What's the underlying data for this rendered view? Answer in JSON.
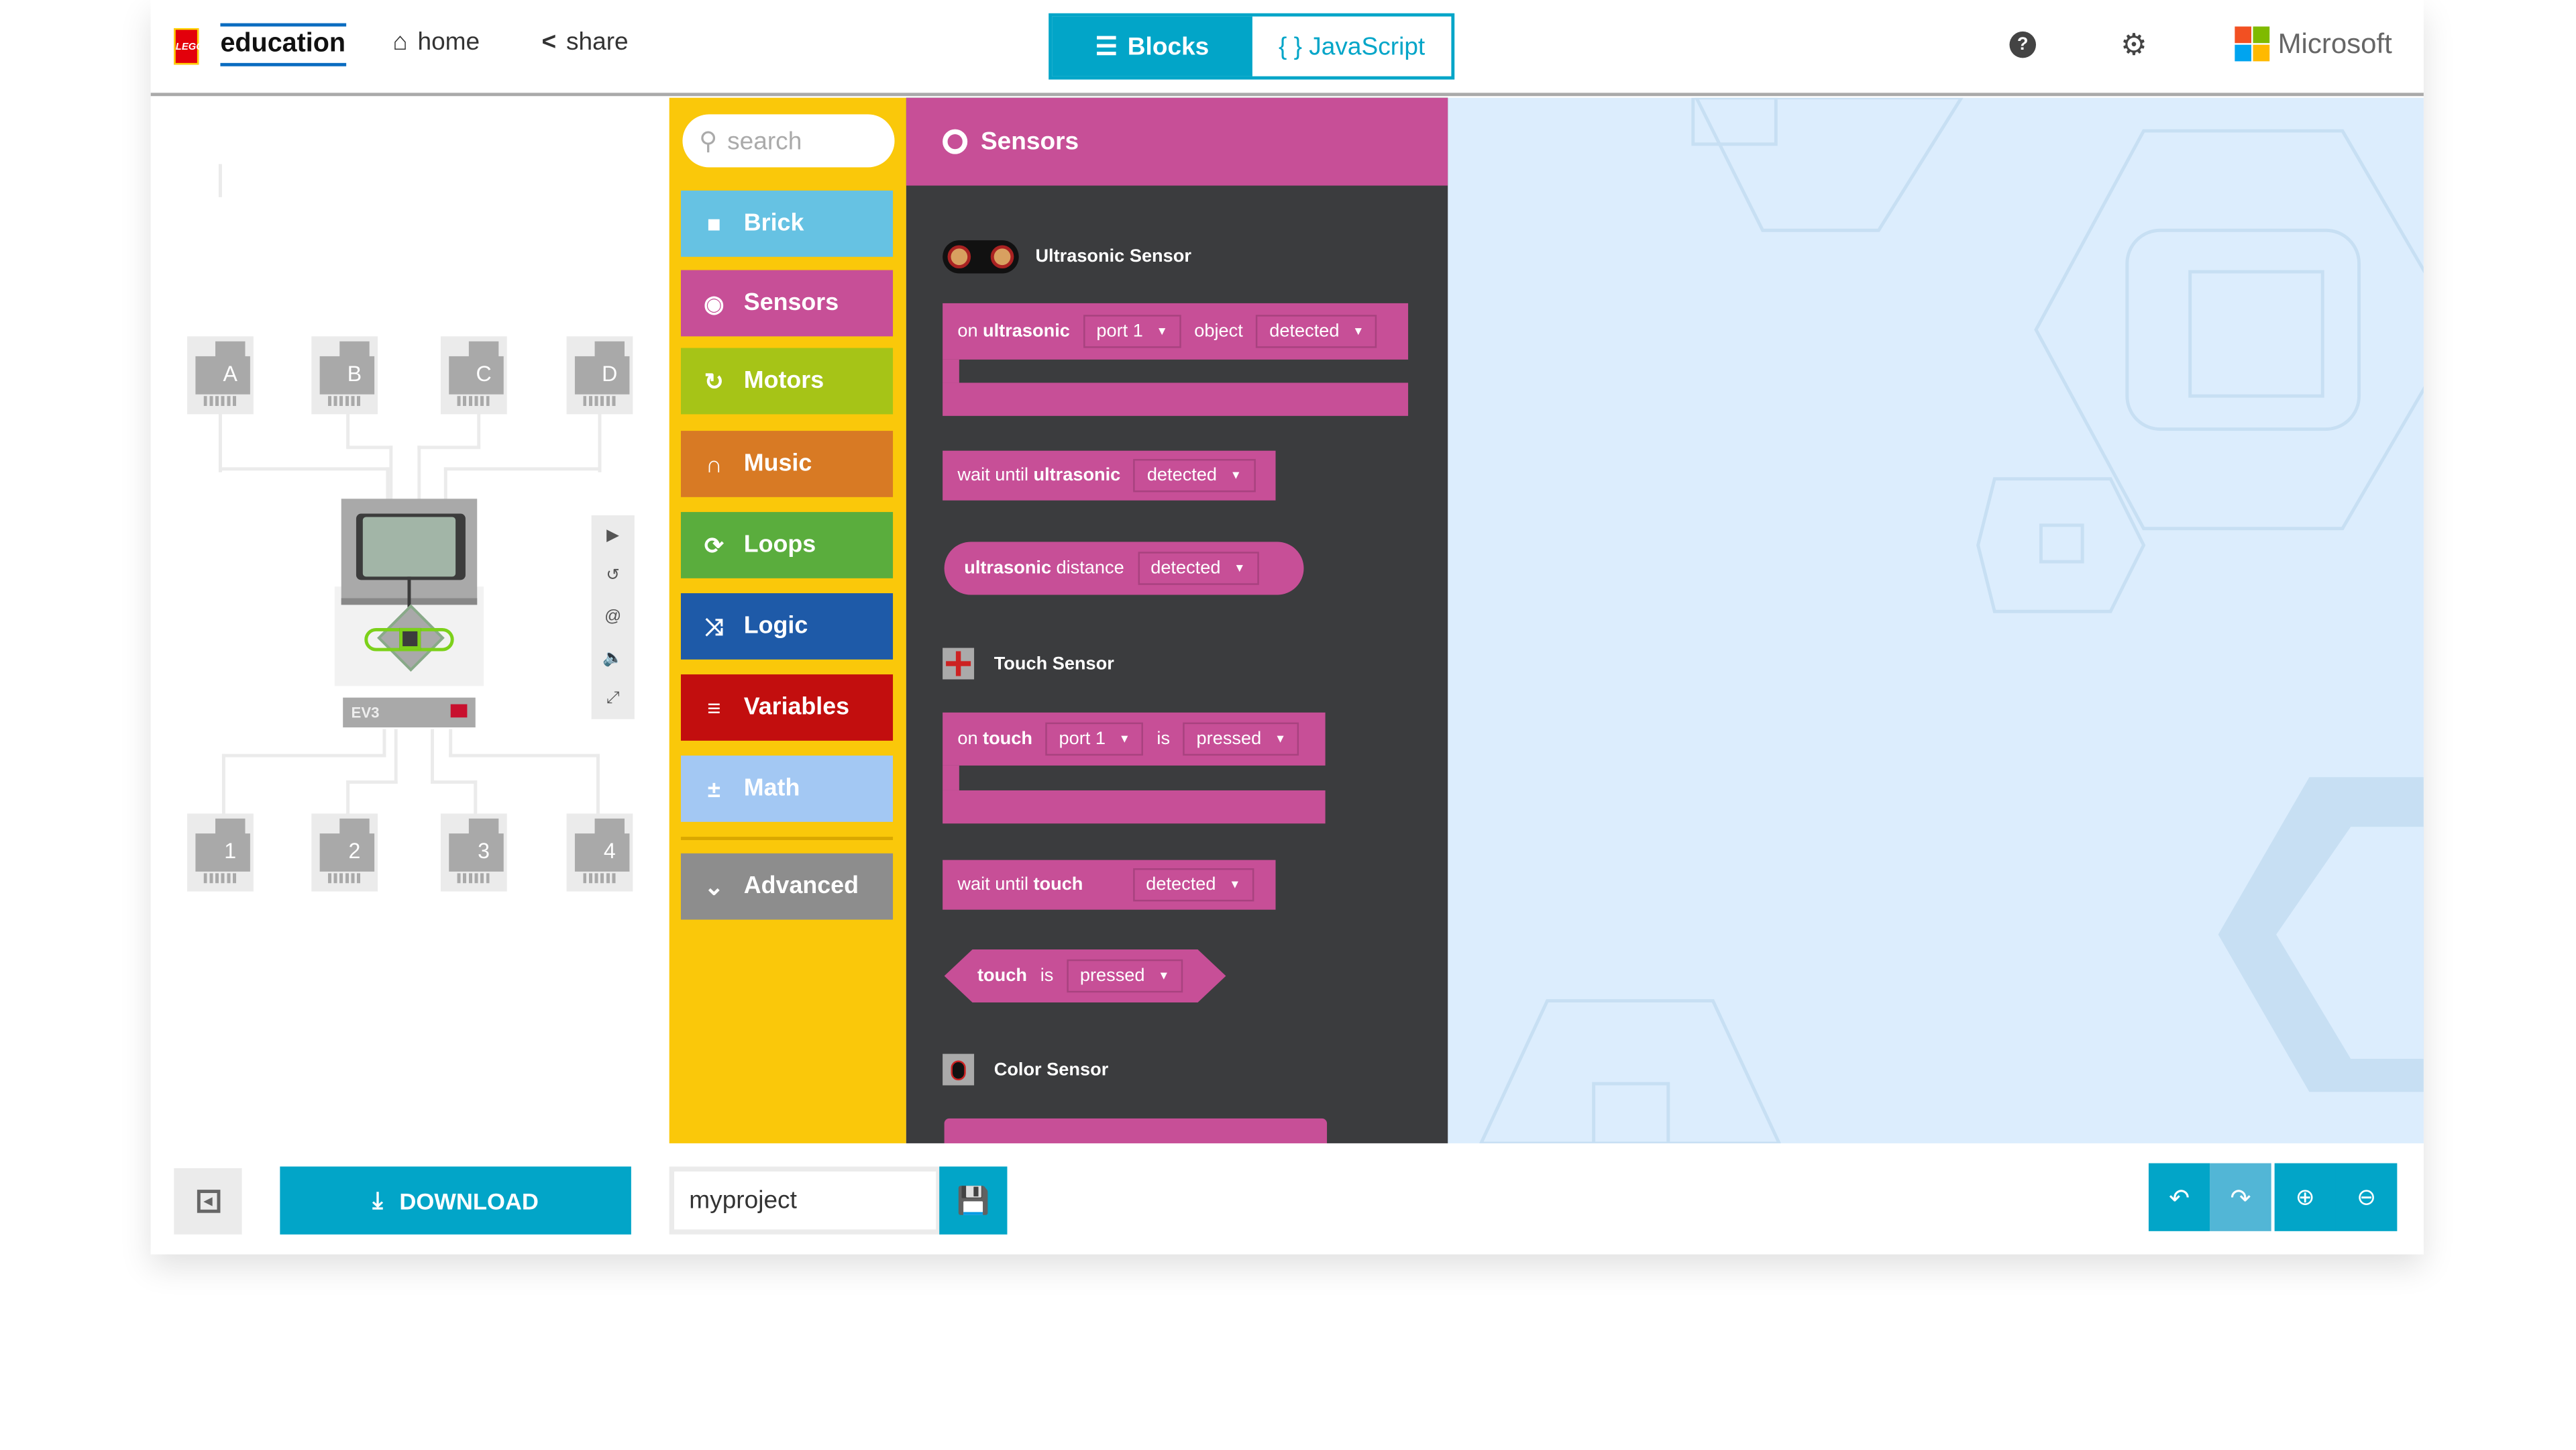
{
  "header": {
    "logo_text": "education",
    "logo_brand": "LEGO",
    "home": "home",
    "share": "share",
    "blocks_tab": "Blocks",
    "javascript_tab": "{ } JavaScript",
    "help_icon": "help-icon",
    "settings_icon": "gear-icon",
    "microsoft": "Microsoft"
  },
  "simulator": {
    "output_ports": [
      "A",
      "B",
      "C",
      "D"
    ],
    "input_ports": [
      "1",
      "2",
      "3",
      "4"
    ],
    "brick_label": "EV3",
    "controls": [
      "play",
      "restart",
      "slow-mo",
      "mute",
      "fullscreen"
    ]
  },
  "toolbox": {
    "search_placeholder": "search",
    "categories": [
      {
        "label": "Brick",
        "color": "#66c2e3",
        "icon": "brick-icon"
      },
      {
        "label": "Sensors",
        "color": "#c74f97",
        "icon": "sensor-icon"
      },
      {
        "label": "Motors",
        "color": "#a6c417",
        "icon": "motor-icon"
      },
      {
        "label": "Music",
        "color": "#d87a24",
        "icon": "headphones-icon"
      },
      {
        "label": "Loops",
        "color": "#5aad3d",
        "icon": "loop-icon"
      },
      {
        "label": "Logic",
        "color": "#1e5aa8",
        "icon": "shuffle-icon"
      },
      {
        "label": "Variables",
        "color": "#c20e0e",
        "icon": "list-icon"
      },
      {
        "label": "Math",
        "color": "#a3c8f3",
        "icon": "math-icon"
      }
    ],
    "advanced": "Advanced"
  },
  "flyout": {
    "title": "Sensors",
    "ultrasonic": {
      "heading": "Ultrasonic Sensor",
      "on_pre": "on",
      "on_bold": "ultrasonic",
      "on_port": "port 1",
      "on_mid": "object",
      "on_state": "detected",
      "wait_pre": "wait until",
      "wait_bold": "ultrasonic",
      "wait_state": "detected",
      "dist_bold": "ultrasonic",
      "dist_post": "distance",
      "dist_state": "detected"
    },
    "touch": {
      "heading": "Touch Sensor",
      "on_pre": "on",
      "on_bold": "touch",
      "on_port": "port 1",
      "on_mid": "is",
      "on_state": "pressed",
      "wait_pre": "wait until",
      "wait_bold": "touch",
      "wait_state": "detected",
      "is_bold": "touch",
      "is_mid": "is",
      "is_state": "pressed"
    },
    "color": {
      "heading": "Color Sensor"
    }
  },
  "footer": {
    "download": "DOWNLOAD",
    "project_name": "myproject"
  },
  "colors": {
    "accent": "#02a5c8",
    "toolbox": "#fac80a",
    "flyout": "#3b3c3e",
    "workspace": "#dcedfd"
  }
}
